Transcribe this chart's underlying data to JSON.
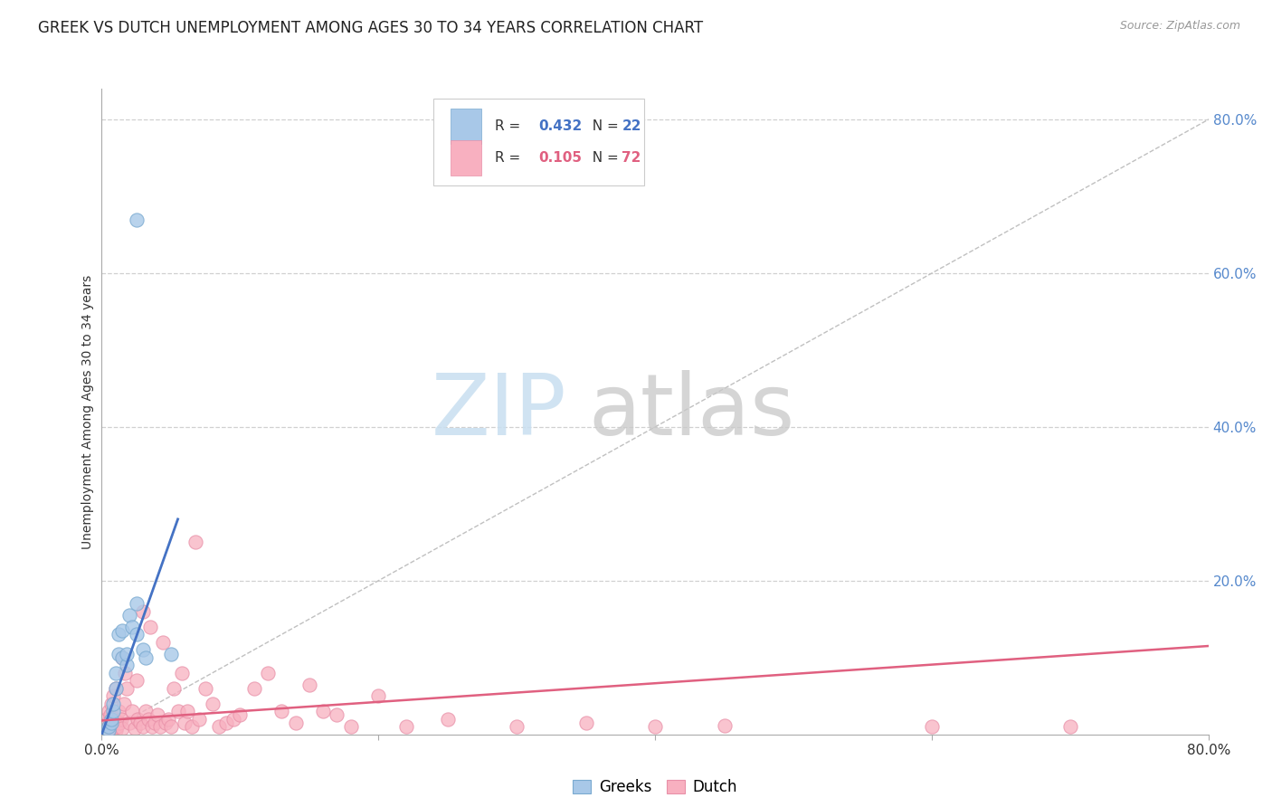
{
  "title": "GREEK VS DUTCH UNEMPLOYMENT AMONG AGES 30 TO 34 YEARS CORRELATION CHART",
  "source": "Source: ZipAtlas.com",
  "ylabel": "Unemployment Among Ages 30 to 34 years",
  "right_yticks": [
    0.2,
    0.4,
    0.6,
    0.8
  ],
  "right_yticklabels": [
    "20.0%",
    "40.0%",
    "60.0%",
    "80.0%"
  ],
  "xlim": [
    0.0,
    0.8
  ],
  "ylim": [
    0.0,
    0.84
  ],
  "greek_color": "#a8c8e8",
  "dutch_color": "#f8b0c0",
  "greek_edge_color": "#7aaad0",
  "dutch_edge_color": "#e890a8",
  "greek_line_color": "#4472c4",
  "dutch_line_color": "#e06080",
  "greek_R": 0.432,
  "greek_N": 22,
  "dutch_R": 0.105,
  "dutch_N": 72,
  "watermark_zip": "ZIP",
  "watermark_atlas": "atlas",
  "legend_greek": "Greeks",
  "legend_dutch": "Dutch",
  "greeks_x": [
    0.005,
    0.005,
    0.007,
    0.007,
    0.008,
    0.008,
    0.01,
    0.01,
    0.012,
    0.012,
    0.015,
    0.015,
    0.018,
    0.018,
    0.02,
    0.022,
    0.025,
    0.025,
    0.03,
    0.032,
    0.05,
    0.025
  ],
  "greeks_y": [
    0.005,
    0.01,
    0.015,
    0.02,
    0.03,
    0.04,
    0.06,
    0.08,
    0.105,
    0.13,
    0.1,
    0.135,
    0.09,
    0.105,
    0.155,
    0.14,
    0.17,
    0.13,
    0.11,
    0.1,
    0.105,
    0.67
  ],
  "dutch_x": [
    0.003,
    0.004,
    0.005,
    0.005,
    0.006,
    0.006,
    0.007,
    0.007,
    0.008,
    0.008,
    0.009,
    0.01,
    0.01,
    0.011,
    0.012,
    0.013,
    0.014,
    0.015,
    0.015,
    0.016,
    0.017,
    0.018,
    0.02,
    0.022,
    0.024,
    0.025,
    0.026,
    0.028,
    0.03,
    0.03,
    0.032,
    0.034,
    0.035,
    0.036,
    0.038,
    0.04,
    0.042,
    0.044,
    0.046,
    0.048,
    0.05,
    0.052,
    0.055,
    0.058,
    0.06,
    0.062,
    0.065,
    0.068,
    0.07,
    0.075,
    0.08,
    0.085,
    0.09,
    0.095,
    0.1,
    0.11,
    0.12,
    0.13,
    0.14,
    0.15,
    0.16,
    0.17,
    0.18,
    0.2,
    0.22,
    0.25,
    0.3,
    0.35,
    0.4,
    0.45,
    0.6,
    0.7
  ],
  "dutch_y": [
    0.02,
    0.015,
    0.01,
    0.03,
    0.008,
    0.025,
    0.005,
    0.04,
    0.012,
    0.05,
    0.015,
    0.005,
    0.06,
    0.01,
    0.03,
    0.015,
    0.02,
    0.008,
    0.1,
    0.04,
    0.08,
    0.06,
    0.015,
    0.03,
    0.008,
    0.07,
    0.02,
    0.015,
    0.01,
    0.16,
    0.03,
    0.02,
    0.14,
    0.01,
    0.015,
    0.025,
    0.01,
    0.12,
    0.015,
    0.02,
    0.01,
    0.06,
    0.03,
    0.08,
    0.015,
    0.03,
    0.01,
    0.25,
    0.02,
    0.06,
    0.04,
    0.01,
    0.015,
    0.02,
    0.025,
    0.06,
    0.08,
    0.03,
    0.015,
    0.065,
    0.03,
    0.025,
    0.01,
    0.05,
    0.01,
    0.02,
    0.01,
    0.015,
    0.01,
    0.012,
    0.01,
    0.01
  ],
  "greek_scatter_size": 120,
  "dutch_scatter_size": 120,
  "background_color": "#ffffff",
  "grid_color": "#d0d0d0",
  "right_axis_color": "#5588cc",
  "title_fontsize": 12,
  "ylabel_fontsize": 10,
  "source_fontsize": 9,
  "legend_fontsize": 11
}
